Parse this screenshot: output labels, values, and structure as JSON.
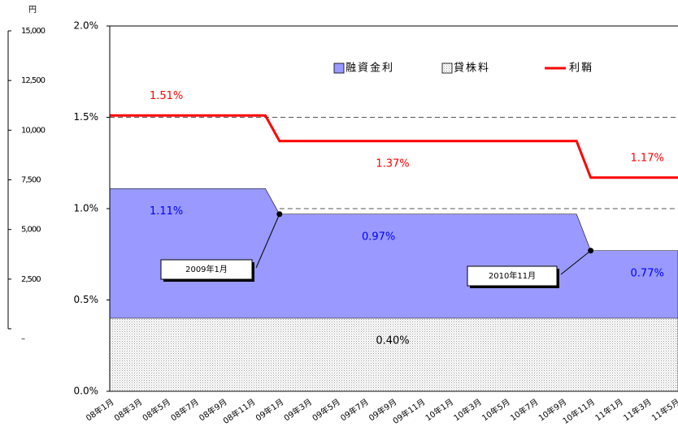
{
  "chart_data": [
    {
      "type": "area-line",
      "categories": [
        "08年1月",
        null,
        "08年3月",
        null,
        "08年5月",
        null,
        "08年7月",
        null,
        "08年9月",
        null,
        "08年11月",
        null,
        "09年1月",
        null,
        "09年3月",
        null,
        "09年5月",
        null,
        "09年7月",
        null,
        "09年9月",
        null,
        "09年11月",
        null,
        "10年1月",
        null,
        "10年3月",
        null,
        "10年5月",
        null,
        "10年7月",
        null,
        "10年9月",
        null,
        "10年11月",
        null,
        "11年1月",
        null,
        "11年3月",
        null,
        "11年5月"
      ],
      "series": [
        {
          "name": "融資金利",
          "kind": "area",
          "color": "#9999ff",
          "values": [
            1.11,
            1.11,
            1.11,
            1.11,
            1.11,
            1.11,
            1.11,
            1.11,
            1.11,
            1.11,
            1.11,
            1.11,
            0.97,
            0.97,
            0.97,
            0.97,
            0.97,
            0.97,
            0.97,
            0.97,
            0.97,
            0.97,
            0.97,
            0.97,
            0.97,
            0.97,
            0.97,
            0.97,
            0.97,
            0.97,
            0.97,
            0.97,
            0.97,
            0.97,
            0.77,
            0.77,
            0.77,
            0.77,
            0.77,
            0.77,
            0.77
          ],
          "value_labels": [
            null,
            null,
            null,
            null,
            "1.11%",
            null,
            null,
            null,
            null,
            null,
            null,
            null,
            null,
            null,
            null,
            null,
            null,
            null,
            null,
            "0.97%",
            null,
            null,
            null,
            null,
            null,
            null,
            null,
            null,
            null,
            null,
            null,
            null,
            null,
            null,
            null,
            null,
            null,
            null,
            "0.77%",
            null,
            null
          ],
          "label_color": "#0000ff"
        },
        {
          "name": "貸株料",
          "kind": "dotted-area",
          "color": "#bbbbbb",
          "values": [
            0.4,
            0.4,
            0.4,
            0.4,
            0.4,
            0.4,
            0.4,
            0.4,
            0.4,
            0.4,
            0.4,
            0.4,
            0.4,
            0.4,
            0.4,
            0.4,
            0.4,
            0.4,
            0.4,
            0.4,
            0.4,
            0.4,
            0.4,
            0.4,
            0.4,
            0.4,
            0.4,
            0.4,
            0.4,
            0.4,
            0.4,
            0.4,
            0.4,
            0.4,
            0.4,
            0.4,
            0.4,
            0.4,
            0.4,
            0.4,
            0.4
          ],
          "value_labels": [
            null,
            null,
            null,
            null,
            null,
            null,
            null,
            null,
            null,
            null,
            null,
            null,
            null,
            null,
            null,
            null,
            null,
            null,
            null,
            null,
            "0.40%",
            null,
            null,
            null,
            null,
            null,
            null,
            null,
            null,
            null,
            null,
            null,
            null,
            null,
            null,
            null,
            null,
            null,
            null,
            null,
            null
          ],
          "label_color": "#000000"
        },
        {
          "name": "利鞘",
          "kind": "line",
          "color": "#ff0000",
          "values": [
            1.51,
            1.51,
            1.51,
            1.51,
            1.51,
            1.51,
            1.51,
            1.51,
            1.51,
            1.51,
            1.51,
            1.51,
            1.37,
            1.37,
            1.37,
            1.37,
            1.37,
            1.37,
            1.37,
            1.37,
            1.37,
            1.37,
            1.37,
            1.37,
            1.37,
            1.37,
            1.37,
            1.37,
            1.37,
            1.37,
            1.37,
            1.37,
            1.37,
            1.37,
            1.17,
            1.17,
            1.17,
            1.17,
            1.17,
            1.17,
            1.17
          ],
          "value_labels": [
            null,
            null,
            null,
            null,
            "1.51%",
            null,
            null,
            null,
            null,
            null,
            null,
            null,
            null,
            null,
            null,
            null,
            null,
            null,
            null,
            null,
            "1.37%",
            null,
            null,
            null,
            null,
            null,
            null,
            null,
            null,
            null,
            null,
            null,
            null,
            null,
            null,
            null,
            null,
            null,
            "1.17%",
            null,
            null
          ],
          "label_color": "#ff0000"
        }
      ],
      "ylim": [
        0,
        2.0
      ],
      "yticks": [
        {
          "value": 0,
          "label": "0.0%"
        },
        {
          "value": 0.5,
          "label": "0.5%"
        },
        {
          "value": 1.0,
          "label": "1.0%"
        },
        {
          "value": 1.5,
          "label": "1.5%"
        },
        {
          "value": 2.0,
          "label": "2.0%"
        }
      ],
      "reference_lines": [
        {
          "value": 1.5,
          "from": 0
        },
        {
          "value": 1.0,
          "from": 12
        }
      ],
      "annotations": [
        {
          "text": "2009年1月",
          "point": 12
        },
        {
          "text": "2010年11月",
          "point": 34
        }
      ],
      "legend": "top"
    },
    {
      "type": "axis",
      "unit": "円",
      "ylim": [
        0,
        15000
      ],
      "yticks": [
        {
          "value": 0,
          "label": "–"
        },
        {
          "value": 2500,
          "label": "2,500"
        },
        {
          "value": 5000,
          "label": "5,000"
        },
        {
          "value": 7500,
          "label": "7,500"
        },
        {
          "value": 10000,
          "label": "10,000"
        },
        {
          "value": 12500,
          "label": "12,500"
        },
        {
          "value": 15000,
          "label": "15,000"
        }
      ]
    }
  ]
}
